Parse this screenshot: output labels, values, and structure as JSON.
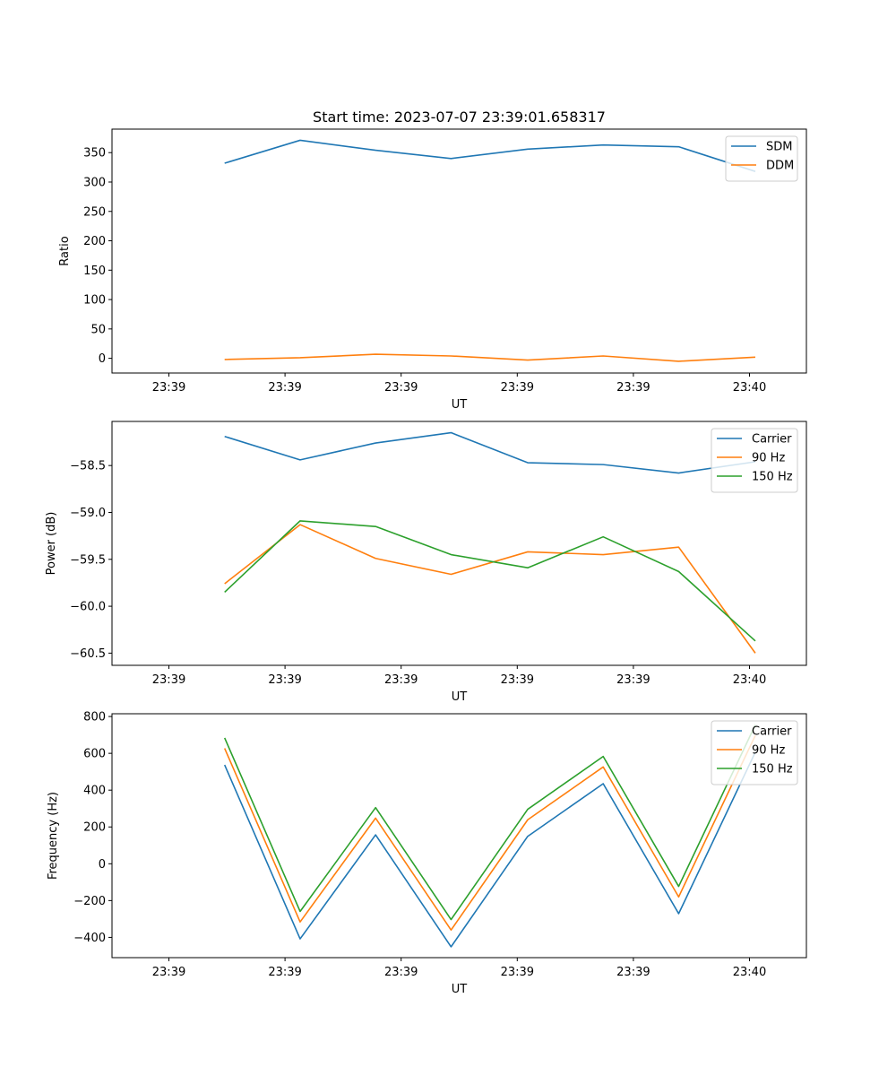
{
  "figure_title": "Start time: 2023-07-07 23:39:01.658317",
  "colors": {
    "blue": "#1f77b4",
    "orange": "#ff7f0e",
    "green": "#2ca02c"
  },
  "chart_data": [
    {
      "type": "line",
      "name": "ratio",
      "title": "Start time: 2023-07-07 23:39:01.658317",
      "xlabel": "UT",
      "ylabel": "Ratio",
      "xlim": [
        -0.49,
        5.49
      ],
      "ylim": [
        -25,
        390
      ],
      "x": [
        0.48,
        1.13,
        1.78,
        2.43,
        3.09,
        3.74,
        4.39,
        5.05
      ],
      "xticks": [
        0,
        1,
        2,
        3,
        4,
        5
      ],
      "xtick_labels": [
        "23:39",
        "23:39",
        "23:39",
        "23:39",
        "23:39",
        "23:40"
      ],
      "yticks": [
        0,
        50,
        100,
        150,
        200,
        250,
        300,
        350
      ],
      "ytick_labels": [
        "0",
        "50",
        "100",
        "150",
        "200",
        "250",
        "300",
        "350"
      ],
      "legend_position": "top-right",
      "series": [
        {
          "name": "SDM",
          "color": "#1f77b4",
          "values": [
            332,
            371,
            354,
            340,
            356,
            363,
            360,
            318
          ]
        },
        {
          "name": "DDM",
          "color": "#ff7f0e",
          "values": [
            -2,
            1,
            7,
            4,
            -3,
            4,
            -5,
            2
          ]
        }
      ]
    },
    {
      "type": "line",
      "name": "power",
      "xlabel": "UT",
      "ylabel": "Power (dB)",
      "xlim": [
        -0.49,
        5.49
      ],
      "ylim": [
        -60.63,
        -58.03
      ],
      "x": [
        0.48,
        1.13,
        1.78,
        2.43,
        3.09,
        3.74,
        4.39,
        5.05
      ],
      "xticks": [
        0,
        1,
        2,
        3,
        4,
        5
      ],
      "xtick_labels": [
        "23:39",
        "23:39",
        "23:39",
        "23:39",
        "23:39",
        "23:40"
      ],
      "yticks": [
        -60.5,
        -60.0,
        -59.5,
        -59.0,
        -58.5
      ],
      "ytick_labels": [
        "−60.5",
        "−60.0",
        "−59.5",
        "−59.0",
        "−58.5"
      ],
      "legend_position": "top-right",
      "series": [
        {
          "name": "Carrier",
          "color": "#1f77b4",
          "values": [
            -58.19,
            -58.44,
            -58.26,
            -58.15,
            -58.47,
            -58.49,
            -58.58,
            -58.46
          ]
        },
        {
          "name": "90 Hz",
          "color": "#ff7f0e",
          "values": [
            -59.76,
            -59.13,
            -59.49,
            -59.66,
            -59.42,
            -59.45,
            -59.37,
            -60.5
          ]
        },
        {
          "name": "150 Hz",
          "color": "#2ca02c",
          "values": [
            -59.85,
            -59.09,
            -59.15,
            -59.45,
            -59.59,
            -59.26,
            -59.63,
            -60.37
          ]
        }
      ]
    },
    {
      "type": "line",
      "name": "frequency",
      "xlabel": "UT",
      "ylabel": "Frequency (Hz)",
      "xlim": [
        -0.49,
        5.49
      ],
      "ylim": [
        -510,
        815
      ],
      "x": [
        0.48,
        1.13,
        1.78,
        2.43,
        3.09,
        3.74,
        4.39,
        5.05
      ],
      "xticks": [
        0,
        1,
        2,
        3,
        4,
        5
      ],
      "xtick_labels": [
        "23:39",
        "23:39",
        "23:39",
        "23:39",
        "23:39",
        "23:40"
      ],
      "yticks": [
        -400,
        -200,
        0,
        200,
        400,
        600,
        800
      ],
      "ytick_labels": [
        "−400",
        "−200",
        "0",
        "200",
        "400",
        "600",
        "800"
      ],
      "legend_position": "top-right",
      "series": [
        {
          "name": "Carrier",
          "color": "#1f77b4",
          "values": [
            537,
            -408,
            157,
            -451,
            149,
            435,
            -271,
            606
          ]
        },
        {
          "name": "90 Hz",
          "color": "#ff7f0e",
          "values": [
            627,
            -316,
            248,
            -360,
            239,
            526,
            -180,
            697
          ]
        },
        {
          "name": "150 Hz",
          "color": "#2ca02c",
          "values": [
            684,
            -259,
            305,
            -303,
            296,
            583,
            -123,
            754
          ]
        }
      ]
    }
  ]
}
